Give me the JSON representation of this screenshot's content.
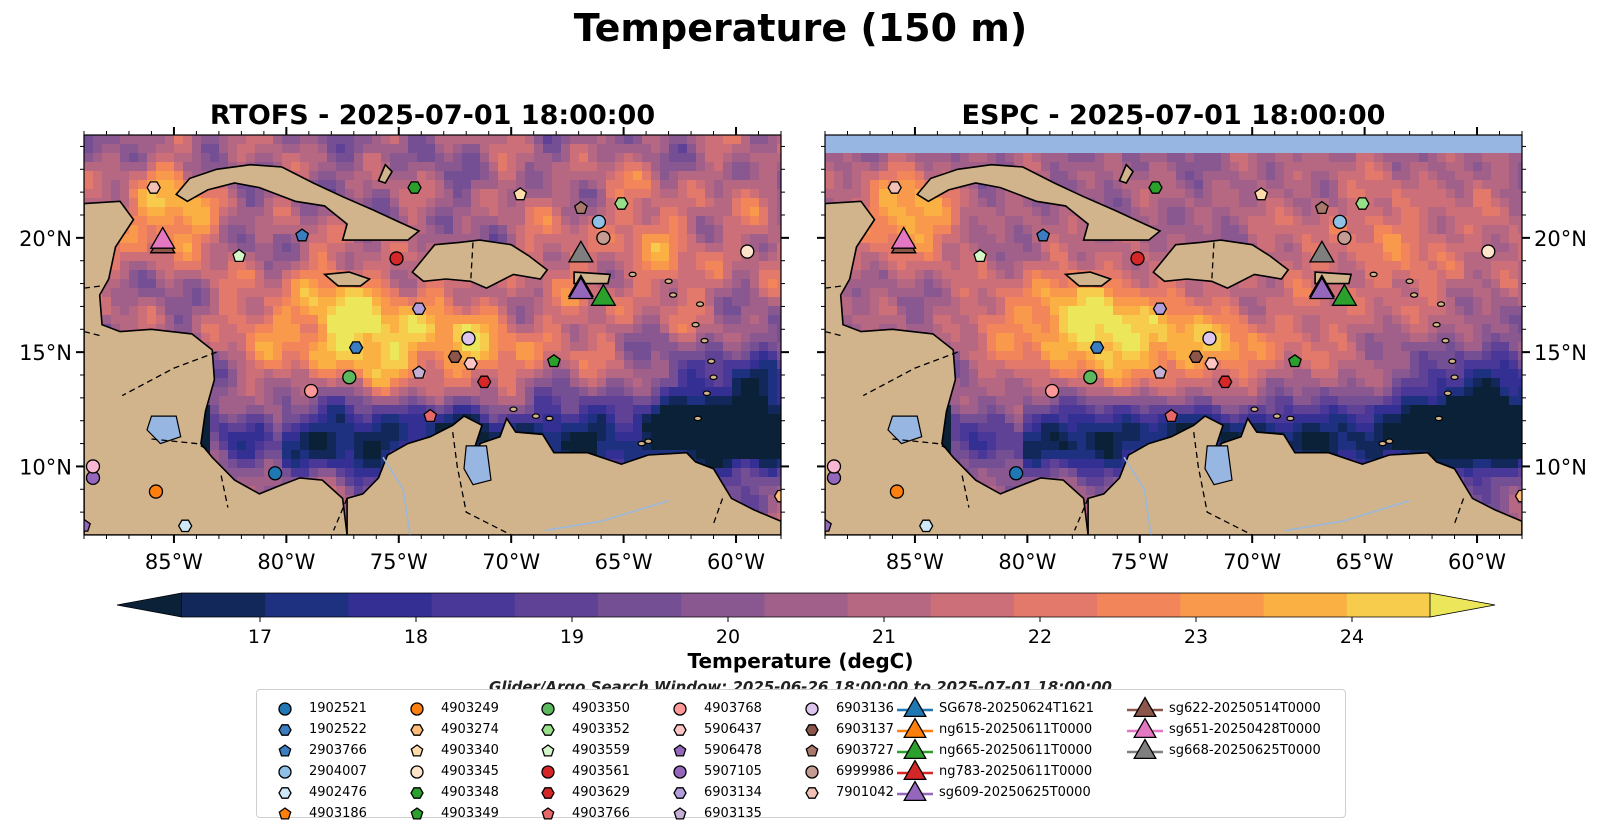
{
  "title": "Temperature (150 m)",
  "panels": [
    {
      "title": "RTOFS - 2025-07-01 18:00:00"
    },
    {
      "title": "ESPC - 2025-07-01 18:00:00"
    }
  ],
  "colorbar": {
    "label": "Temperature (degC)",
    "ticks": [
      "17",
      "18",
      "19",
      "20",
      "21",
      "22",
      "23",
      "24"
    ],
    "min": 16.5,
    "max": 24.5,
    "step": 0.5,
    "extend": "both",
    "colors": [
      "#0b2138",
      "#12285a",
      "#1e3181",
      "#332f93",
      "#4a3899",
      "#5f4296",
      "#744f94",
      "#8a5890",
      "#a0608a",
      "#b66882",
      "#cd6f78",
      "#e2796a",
      "#f2865a",
      "#f9994b",
      "#fbb044",
      "#f7cc4c",
      "#ebe65a"
    ]
  },
  "note": "Glider/Argo Search Window: 2025-06-26 18:00:00 to 2025-07-01 18:00:00",
  "chart_data": [
    {
      "type": "heatmap",
      "title": "RTOFS - 2025-07-01 18:00:00",
      "variable": "Temperature (150 m)",
      "units": "degC",
      "xlim": [
        -89,
        -58
      ],
      "ylim": [
        7,
        24.5
      ],
      "x_ticks": [
        "85°W",
        "80°W",
        "75°W",
        "70°W",
        "65°W",
        "60°W"
      ],
      "y_ticks": [
        "10°N",
        "15°N",
        "20°N"
      ],
      "y_tick_side": "left"
    },
    {
      "type": "heatmap",
      "title": "ESPC - 2025-07-01 18:00:00",
      "variable": "Temperature (150 m)",
      "units": "degC",
      "xlim": [
        -89,
        -58
      ],
      "ylim": [
        7,
        24.5
      ],
      "x_ticks": [
        "85°W",
        "80°W",
        "75°W",
        "70°W",
        "65°W",
        "60°W"
      ],
      "y_ticks": [
        "10°N",
        "15°N",
        "20°N"
      ],
      "y_tick_side": "right"
    }
  ],
  "argo_floats": [
    {
      "id": "1902521",
      "marker": "circle",
      "color": "#1f77b4",
      "lon": -80.5,
      "lat": 9.7
    },
    {
      "id": "1902522",
      "marker": "hexagon",
      "color": "#3a7dc0",
      "lon": -76.9,
      "lat": 15.2
    },
    {
      "id": "2903766",
      "marker": "pentagon",
      "color": "#3a7dc0",
      "lon": -79.3,
      "lat": 20.1
    },
    {
      "id": "2904007",
      "marker": "circle",
      "color": "#8fc0e6",
      "lon": -66.1,
      "lat": 20.7
    },
    {
      "id": "4902476",
      "marker": "hexagon",
      "color": "#cfe8f8",
      "lon": -84.5,
      "lat": 7.4
    },
    {
      "id": "4903186",
      "marker": "pentagon",
      "color": "#ff7f0e",
      "lon": -85.8,
      "lat": 8.9
    },
    {
      "id": "4903249",
      "marker": "circle",
      "color": "#ff7f0e",
      "lon": -85.8,
      "lat": 8.9
    },
    {
      "id": "4903274",
      "marker": "hexagon",
      "color": "#ffbb78",
      "lon": -58,
      "lat": 8.7
    },
    {
      "id": "4903340",
      "marker": "pentagon",
      "color": "#ffdcaa",
      "lon": -69.6,
      "lat": 21.9
    },
    {
      "id": "4903345",
      "marker": "circle",
      "color": "#ffe4cc",
      "lon": -59.5,
      "lat": 19.4
    },
    {
      "id": "4903348",
      "marker": "hexagon",
      "color": "#2ca02c",
      "lon": -74.3,
      "lat": 22.2
    },
    {
      "id": "4903349",
      "marker": "pentagon",
      "color": "#2ca02c",
      "lon": -68.1,
      "lat": 14.6
    },
    {
      "id": "4903350",
      "marker": "circle",
      "color": "#5cb85c",
      "lon": -77.2,
      "lat": 13.9
    },
    {
      "id": "4903352",
      "marker": "hexagon",
      "color": "#98df8a",
      "lon": -65.1,
      "lat": 21.5
    },
    {
      "id": "4903559",
      "marker": "pentagon",
      "color": "#d4f5c8",
      "lon": -82.1,
      "lat": 19.2
    },
    {
      "id": "4903561",
      "marker": "circle",
      "color": "#d62728",
      "lon": -75.1,
      "lat": 19.1
    },
    {
      "id": "4903629",
      "marker": "hexagon",
      "color": "#d62728",
      "lon": -71.2,
      "lat": 13.7
    },
    {
      "id": "4903766",
      "marker": "pentagon",
      "color": "#e8686a",
      "lon": -73.6,
      "lat": 12.2
    },
    {
      "id": "4903768",
      "marker": "circle",
      "color": "#ff9896",
      "lon": -78.9,
      "lat": 13.3
    },
    {
      "id": "5906437",
      "marker": "hexagon",
      "color": "#ffc4c4",
      "lon": -71.8,
      "lat": 14.5
    },
    {
      "id": "5906478",
      "marker": "pentagon",
      "color": "#9467bd",
      "lon": -89,
      "lat": 7.4
    },
    {
      "id": "5907105",
      "marker": "circle",
      "color": "#9467bd",
      "lon": -88.6,
      "lat": 9.5
    },
    {
      "id": "6903134",
      "marker": "hexagon",
      "color": "#b39ddb",
      "lon": -74.1,
      "lat": 16.9
    },
    {
      "id": "6903135",
      "marker": "pentagon",
      "color": "#c5b0d5",
      "lon": -74.1,
      "lat": 14.1
    },
    {
      "id": "6903136",
      "marker": "circle",
      "color": "#dcc6f0",
      "lon": -71.9,
      "lat": 15.6
    },
    {
      "id": "6903137",
      "marker": "hexagon",
      "color": "#8c564b",
      "lon": -72.5,
      "lat": 14.8
    },
    {
      "id": "6903727",
      "marker": "pentagon",
      "color": "#a9786c",
      "lon": -66.9,
      "lat": 21.3
    },
    {
      "id": "6999986",
      "marker": "circle",
      "color": "#c49c94",
      "lon": -65.9,
      "lat": 20
    },
    {
      "id": "7901042",
      "marker": "hexagon",
      "color": "#f2c0b5",
      "lon": -85.9,
      "lat": 22.2
    },
    {
      "id": "7901042b",
      "marker": "circle",
      "color": "#f7b6d2",
      "lon": -88.6,
      "lat": 10
    }
  ],
  "gliders": [
    {
      "id": "SG678-20250624T1621",
      "color": "#1f77b4",
      "lon": -66.9,
      "lat": 17.9
    },
    {
      "id": "ng615-20250611T0000",
      "color": "#ff7f0e",
      "lon": -66.9,
      "lat": 17.9
    },
    {
      "id": "ng665-20250611T0000",
      "color": "#2ca02c",
      "lon": -65.9,
      "lat": 17.5
    },
    {
      "id": "ng783-20250611T0000",
      "color": "#d62728",
      "lon": -85.5,
      "lat": 19.8
    },
    {
      "id": "sg609-20250625T0000",
      "color": "#9467bd",
      "lon": -66.9,
      "lat": 17.8
    },
    {
      "id": "sg622-20250514T0000",
      "color": "#8c564b",
      "lon": -85.5,
      "lat": 19.8
    },
    {
      "id": "sg651-20250428T0000",
      "color": "#e377c2",
      "lon": -85.5,
      "lat": 20.0
    },
    {
      "id": "sg668-20250625T0000",
      "color": "#7f7f7f",
      "lon": -66.9,
      "lat": 19.4
    }
  ],
  "legend": [
    {
      "label": "1902521",
      "marker": "circle",
      "color": "#1f77b4"
    },
    {
      "label": "1902522",
      "marker": "hexagon",
      "color": "#3a7dc0"
    },
    {
      "label": "2903766",
      "marker": "pentagon",
      "color": "#3a7dc0"
    },
    {
      "label": "2904007",
      "marker": "circle",
      "color": "#8fc0e6"
    },
    {
      "label": "4902476",
      "marker": "hexagon",
      "color": "#cfe8f8"
    },
    {
      "label": "4903186",
      "marker": "pentagon",
      "color": "#ff7f0e"
    },
    {
      "label": "4903249",
      "marker": "circle",
      "color": "#ff7f0e"
    },
    {
      "label": "4903274",
      "marker": "hexagon",
      "color": "#ffbb78"
    },
    {
      "label": "4903340",
      "marker": "pentagon",
      "color": "#ffdcaa"
    },
    {
      "label": "4903345",
      "marker": "circle",
      "color": "#ffe4cc"
    },
    {
      "label": "4903348",
      "marker": "hexagon",
      "color": "#2ca02c"
    },
    {
      "label": "4903349",
      "marker": "pentagon",
      "color": "#2ca02c"
    },
    {
      "label": "4903350",
      "marker": "circle",
      "color": "#5cb85c"
    },
    {
      "label": "4903352",
      "marker": "hexagon",
      "color": "#98df8a"
    },
    {
      "label": "4903559",
      "marker": "pentagon",
      "color": "#d4f5c8"
    },
    {
      "label": "4903561",
      "marker": "circle",
      "color": "#d62728"
    },
    {
      "label": "4903629",
      "marker": "hexagon",
      "color": "#d62728"
    },
    {
      "label": "4903766",
      "marker": "pentagon",
      "color": "#e8686a"
    },
    {
      "label": "4903768",
      "marker": "circle",
      "color": "#ff9896"
    },
    {
      "label": "5906437",
      "marker": "hexagon",
      "color": "#ffc4c4"
    },
    {
      "label": "5906478",
      "marker": "pentagon",
      "color": "#9467bd"
    },
    {
      "label": "5907105",
      "marker": "circle",
      "color": "#9467bd"
    },
    {
      "label": "6903134",
      "marker": "hexagon",
      "color": "#b39ddb"
    },
    {
      "label": "6903135",
      "marker": "pentagon",
      "color": "#c5b0d5"
    },
    {
      "label": "6903136",
      "marker": "circle",
      "color": "#dcc6f0"
    },
    {
      "label": "6903137",
      "marker": "hexagon",
      "color": "#8c564b"
    },
    {
      "label": "6903727",
      "marker": "pentagon",
      "color": "#a9786c"
    },
    {
      "label": "6999986",
      "marker": "circle",
      "color": "#c49c94"
    },
    {
      "label": "7901042",
      "marker": "hexagon",
      "color": "#f2c0b5"
    },
    {
      "label": "SG678-20250624T1621",
      "marker": "triangle",
      "color": "#1f77b4"
    },
    {
      "label": "ng615-20250611T0000",
      "marker": "triangle",
      "color": "#ff7f0e"
    },
    {
      "label": "ng665-20250611T0000",
      "marker": "triangle",
      "color": "#2ca02c"
    },
    {
      "label": "ng783-20250611T0000",
      "marker": "triangle",
      "color": "#d62728"
    },
    {
      "label": "sg609-20250625T0000",
      "marker": "triangle",
      "color": "#9467bd"
    },
    {
      "label": "sg622-20250514T0000",
      "marker": "triangle",
      "color": "#8c564b"
    },
    {
      "label": "sg651-20250428T0000",
      "marker": "triangle",
      "color": "#e377c2"
    },
    {
      "label": "sg668-20250625T0000",
      "marker": "triangle",
      "color": "#7f7f7f"
    }
  ],
  "map_colors": {
    "land": "#d2b48c",
    "ocean_fill": "#97b6e1",
    "river": "#9ab8dc",
    "coast": "#000000"
  }
}
